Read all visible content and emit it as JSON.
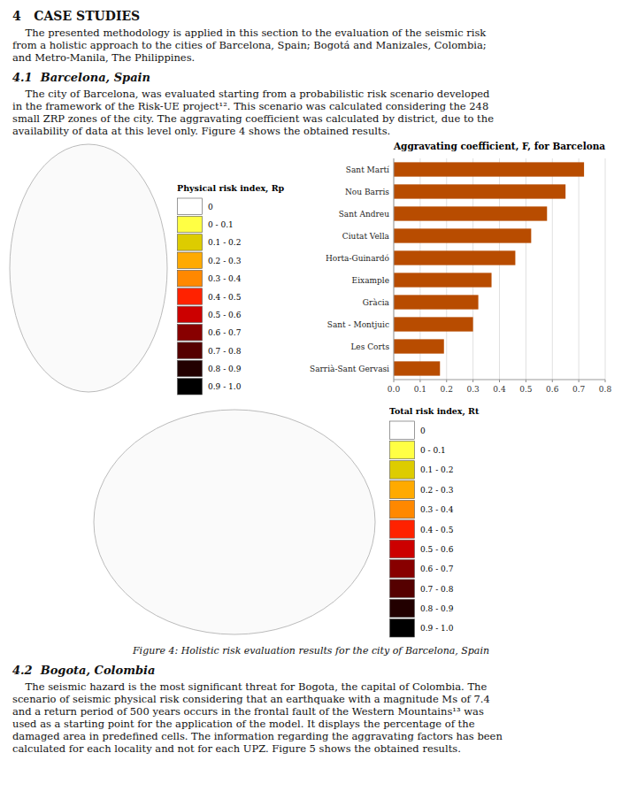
{
  "chart_data": [
    {
      "type": "heading",
      "title": "4   CASE STUDIES"
    },
    {
      "type": "paragraph",
      "annotations": [
        "    The presented methodology is applied in this section to the evaluation of the seismic risk",
        "from a holistic approach to the cities of Barcelona, Spain; Bogotá and Manizales, Colombia;",
        "and Metro-Manila, The Philippines."
      ]
    },
    {
      "type": "subheading",
      "title": "4.1  Barcelona, Spain"
    },
    {
      "type": "paragraph",
      "annotations": [
        "    The city of Barcelona, was evaluated starting from a probabilistic risk scenario developed",
        "in the framework of the Risk-UE project¹². This scenario was calculated considering the 248",
        "small ZRP zones of the city. The aggravating coefficient was calculated by district, due to the",
        "availability of data at this level only. Figure 4 shows the obtained results."
      ]
    },
    {
      "type": "bar",
      "orientation": "horizontal",
      "title": "Aggravating coefficient, F, for Barcelona",
      "categories": [
        "Sant Martí",
        "Nou Barris",
        "Sant Andreu",
        "Ciutat Vella",
        "Horta-Guinardó",
        "Eixample",
        "Gràcia",
        "Sant - Montjuic",
        "Les Corts",
        "Sarrià-Sant Gervasi"
      ],
      "values": [
        0.72,
        0.65,
        0.58,
        0.52,
        0.46,
        0.37,
        0.32,
        0.3,
        0.19,
        0.175
      ],
      "color": "#b84c00",
      "xlim": [
        0,
        0.8
      ],
      "xticks": [
        {
          "value": 0,
          "label": "0.0"
        },
        0.1,
        0.2,
        0.3,
        0.4,
        0.5,
        0.6,
        0.7,
        0.8
      ],
      "grid": true
    },
    {
      "type": "legend",
      "title": "Physical risk index, Rp",
      "categories": [
        "0",
        "0 - 0.1",
        "0.1 - 0.2",
        "0.2 - 0.3",
        "0.3 - 0.4",
        "0.4 - 0.5",
        "0.5 - 0.6",
        "0.6 - 0.7",
        "0.7 - 0.8",
        "0.8 - 0.9",
        "0.9 - 1.0"
      ],
      "colors": [
        "#ffffff",
        "#ffff44",
        "#ddcc00",
        "#ffaa00",
        "#ff8800",
        "#ff2200",
        "#cc0000",
        "#880000",
        "#550000",
        "#220000",
        "#000000"
      ]
    },
    {
      "type": "legend",
      "title": "Total risk index, Rt",
      "categories": [
        "0",
        "0 - 0.1",
        "0.1 - 0.2",
        "0.2 - 0.3",
        "0.3 - 0.4",
        "0.4 - 0.5",
        "0.5 - 0.6",
        "0.6 - 0.7",
        "0.7 - 0.8",
        "0.8 - 0.9",
        "0.9 - 1.0"
      ],
      "colors": [
        "#ffffff",
        "#ffff44",
        "#ddcc00",
        "#ffaa00",
        "#ff8800",
        "#ff2200",
        "#cc0000",
        "#880000",
        "#550000",
        "#220000",
        "#000000"
      ]
    },
    {
      "type": "caption",
      "title": "Figure 4: Holistic risk evaluation results for the city of Barcelona, Spain"
    },
    {
      "type": "subheading",
      "title": "4.2  Bogota, Colombia"
    },
    {
      "type": "paragraph",
      "annotations": [
        "    The seismic hazard is the most significant threat for Bogota, the capital of Colombia. The",
        "scenario of seismic physical risk considering that an earthquake with a magnitude Ms of 7.4",
        "and a return period of 500 years occurs in the frontal fault of the Western Mountains¹³ was",
        "used as a starting point for the application of the model. It displays the percentage of the",
        "damaged area in predefined cells. The information regarding the aggravating factors has been",
        "calculated for each locality and not for each UPZ. Figure 5 shows the obtained results."
      ]
    }
  ]
}
